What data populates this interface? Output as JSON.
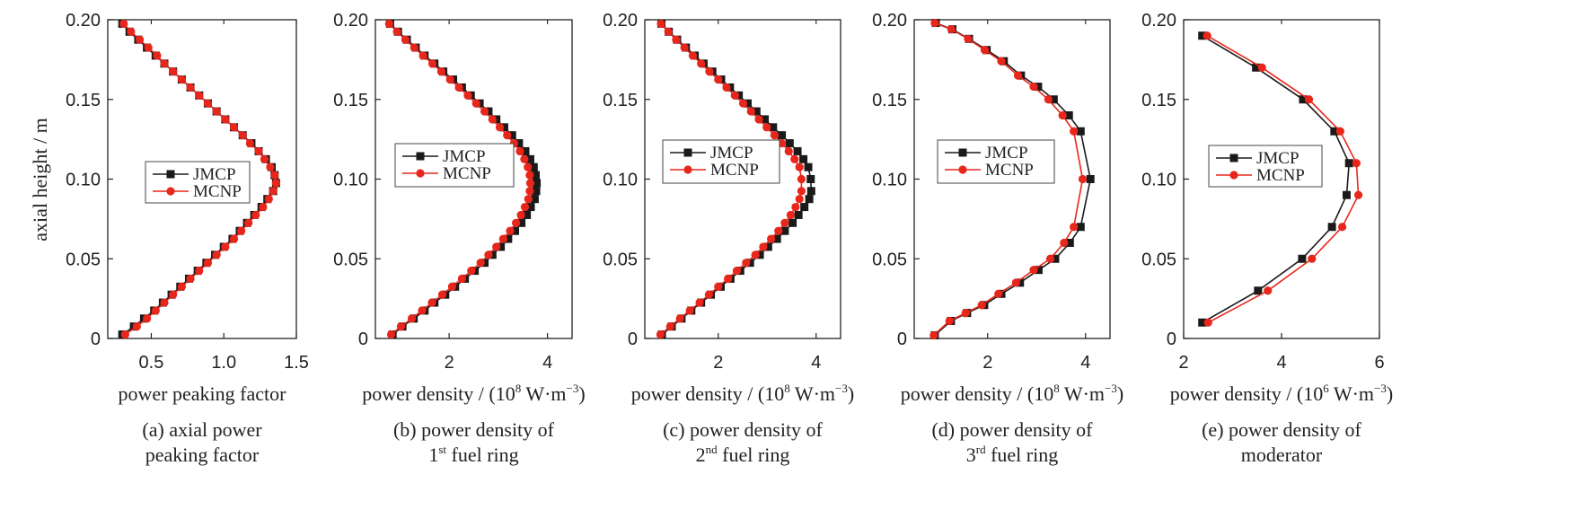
{
  "figure": {
    "y_axis_title": "axial height / m",
    "colors": {
      "JMCP": "#1a1a1a",
      "MCNP": "#e8261c"
    }
  },
  "chart_data": [
    {
      "id": "a",
      "type": "line",
      "xlabel": "power peaking factor",
      "xlabel_unit": null,
      "caption_lines": [
        "(a) axial power",
        "peaking factor"
      ],
      "xlim": [
        0.2,
        1.5
      ],
      "xticks": [
        0.5,
        1.0,
        1.5
      ],
      "xtick_labels": [
        "0.5",
        "1.0",
        "1.5"
      ],
      "ylim": [
        0,
        0.2
      ],
      "yticks": [
        0,
        0.05,
        0.1,
        0.15,
        0.2
      ],
      "ytick_labels": [
        "0",
        "0.05",
        "0.10",
        "0.15",
        "0.20"
      ],
      "legend": {
        "entries": [
          "JMCP",
          "MCNP"
        ],
        "placement": "center-left"
      },
      "series": [
        {
          "name": "JMCP",
          "marker": "square",
          "x": [
            0.3,
            0.38,
            0.45,
            0.52,
            0.58,
            0.64,
            0.7,
            0.76,
            0.82,
            0.88,
            0.94,
            1.0,
            1.06,
            1.11,
            1.16,
            1.21,
            1.26,
            1.3,
            1.34,
            1.36,
            1.35,
            1.33,
            1.29,
            1.24,
            1.19,
            1.13,
            1.07,
            1.01,
            0.95,
            0.89,
            0.83,
            0.77,
            0.71,
            0.65,
            0.59,
            0.53,
            0.47,
            0.41,
            0.35,
            0.3
          ],
          "y": [
            0.0025,
            0.0075,
            0.0125,
            0.0175,
            0.0225,
            0.0275,
            0.0325,
            0.0375,
            0.0425,
            0.0475,
            0.0525,
            0.0575,
            0.0625,
            0.0675,
            0.0725,
            0.0775,
            0.0825,
            0.0875,
            0.0925,
            0.0975,
            0.1025,
            0.1075,
            0.1125,
            0.1175,
            0.1225,
            0.1275,
            0.1325,
            0.1375,
            0.1425,
            0.1475,
            0.1525,
            0.1575,
            0.1625,
            0.1675,
            0.1725,
            0.1775,
            0.1825,
            0.1875,
            0.1925,
            0.1975
          ]
        },
        {
          "name": "MCNP",
          "marker": "circle",
          "x": [
            0.32,
            0.4,
            0.47,
            0.53,
            0.59,
            0.65,
            0.71,
            0.77,
            0.83,
            0.89,
            0.95,
            1.01,
            1.07,
            1.12,
            1.17,
            1.22,
            1.27,
            1.31,
            1.34,
            1.36,
            1.35,
            1.32,
            1.28,
            1.24,
            1.18,
            1.13,
            1.07,
            1.01,
            0.95,
            0.89,
            0.83,
            0.77,
            0.71,
            0.65,
            0.59,
            0.54,
            0.48,
            0.42,
            0.36,
            0.31
          ],
          "y": [
            0.0025,
            0.0075,
            0.0125,
            0.0175,
            0.0225,
            0.0275,
            0.0325,
            0.0375,
            0.0425,
            0.0475,
            0.0525,
            0.0575,
            0.0625,
            0.0675,
            0.0725,
            0.0775,
            0.0825,
            0.0875,
            0.0925,
            0.0975,
            0.1025,
            0.1075,
            0.1125,
            0.1175,
            0.1225,
            0.1275,
            0.1325,
            0.1375,
            0.1425,
            0.1475,
            0.1525,
            0.1575,
            0.1625,
            0.1675,
            0.1725,
            0.1775,
            0.1825,
            0.1875,
            0.1925,
            0.1975
          ]
        }
      ]
    },
    {
      "id": "b",
      "type": "line",
      "xlabel": "power density / (10",
      "xlabel_exp": "8",
      "xlabel_tail": " W·m",
      "xlabel_tail_exp": "−3",
      "xlabel_close": ")",
      "caption_lines": [
        "(b) power density of",
        "1st fuel ring"
      ],
      "caption_sup": {
        "line": 1,
        "base": "1",
        "sup": "st",
        "rest": " fuel ring"
      },
      "xlim": [
        0.5,
        4.5
      ],
      "xticks": [
        2,
        4
      ],
      "xtick_labels": [
        "2",
        "4"
      ],
      "ylim": [
        0,
        0.2
      ],
      "yticks": [
        0,
        0.05,
        0.1,
        0.15,
        0.2
      ],
      "ytick_labels": [
        "0",
        "0.05",
        "0.10",
        "0.15",
        "0.20"
      ],
      "legend": {
        "entries": [
          "JMCP",
          "MCNP"
        ],
        "placement": "center-left"
      },
      "series": [
        {
          "name": "JMCP",
          "marker": "square",
          "x": [
            0.85,
            1.05,
            1.28,
            1.5,
            1.7,
            1.92,
            2.12,
            2.32,
            2.52,
            2.72,
            2.88,
            3.05,
            3.2,
            3.34,
            3.47,
            3.58,
            3.66,
            3.74,
            3.77,
            3.78,
            3.76,
            3.72,
            3.65,
            3.55,
            3.42,
            3.28,
            3.12,
            2.96,
            2.8,
            2.62,
            2.44,
            2.26,
            2.08,
            1.88,
            1.7,
            1.5,
            1.32,
            1.14,
            0.96,
            0.8
          ],
          "y": [
            0.0025,
            0.0075,
            0.0125,
            0.0175,
            0.0225,
            0.0275,
            0.0325,
            0.0375,
            0.0425,
            0.0475,
            0.0525,
            0.0575,
            0.0625,
            0.0675,
            0.0725,
            0.0775,
            0.0825,
            0.0875,
            0.0925,
            0.0975,
            0.1025,
            0.1075,
            0.1125,
            0.1175,
            0.1225,
            0.1275,
            0.1325,
            0.1375,
            0.1425,
            0.1475,
            0.1525,
            0.1575,
            0.1625,
            0.1675,
            0.1725,
            0.1775,
            0.1825,
            0.1875,
            0.1925,
            0.1975
          ]
        },
        {
          "name": "MCNP",
          "marker": "circle",
          "x": [
            0.82,
            1.02,
            1.24,
            1.45,
            1.65,
            1.86,
            2.06,
            2.26,
            2.45,
            2.64,
            2.8,
            2.96,
            3.1,
            3.24,
            3.36,
            3.46,
            3.54,
            3.61,
            3.64,
            3.65,
            3.64,
            3.6,
            3.53,
            3.44,
            3.32,
            3.18,
            3.03,
            2.88,
            2.72,
            2.55,
            2.38,
            2.2,
            2.02,
            1.84,
            1.66,
            1.47,
            1.29,
            1.11,
            0.94,
            0.78
          ],
          "y": [
            0.0025,
            0.0075,
            0.0125,
            0.0175,
            0.0225,
            0.0275,
            0.0325,
            0.0375,
            0.0425,
            0.0475,
            0.0525,
            0.0575,
            0.0625,
            0.0675,
            0.0725,
            0.0775,
            0.0825,
            0.0875,
            0.0925,
            0.0975,
            0.1025,
            0.1075,
            0.1125,
            0.1175,
            0.1225,
            0.1275,
            0.1325,
            0.1375,
            0.1425,
            0.1475,
            0.1525,
            0.1575,
            0.1625,
            0.1675,
            0.1725,
            0.1775,
            0.1825,
            0.1875,
            0.1925,
            0.1975
          ]
        }
      ]
    },
    {
      "id": "c",
      "type": "line",
      "xlabel": "power density / (10",
      "xlabel_exp": "8",
      "xlabel_tail": " W·m",
      "xlabel_tail_exp": "−3",
      "xlabel_close": ")",
      "caption_lines": [
        "(c) power density of",
        "2nd fuel ring"
      ],
      "caption_sup": {
        "line": 1,
        "base": "2",
        "sup": "nd",
        "rest": " fuel ring"
      },
      "xlim": [
        0.5,
        4.5
      ],
      "xticks": [
        2,
        4
      ],
      "xtick_labels": [
        "2",
        "4"
      ],
      "ylim": [
        0,
        0.2
      ],
      "yticks": [
        0,
        0.05,
        0.1,
        0.15,
        0.2
      ],
      "ytick_labels": [
        "0",
        "0.05",
        "0.10",
        "0.15",
        "0.20"
      ],
      "legend": {
        "entries": [
          "JMCP",
          "MCNP"
        ],
        "placement": "center-left"
      },
      "series": [
        {
          "name": "JMCP",
          "marker": "square",
          "x": [
            0.85,
            1.05,
            1.25,
            1.45,
            1.65,
            1.85,
            2.05,
            2.25,
            2.45,
            2.65,
            2.85,
            3.02,
            3.2,
            3.36,
            3.52,
            3.64,
            3.76,
            3.86,
            3.9,
            3.89,
            3.84,
            3.74,
            3.62,
            3.46,
            3.3,
            3.12,
            2.95,
            2.78,
            2.6,
            2.42,
            2.24,
            2.06,
            1.88,
            1.7,
            1.52,
            1.34,
            1.16,
            0.99,
            0.84
          ],
          "y": [
            0.0025,
            0.0075,
            0.0125,
            0.0175,
            0.0225,
            0.0275,
            0.0325,
            0.0375,
            0.0425,
            0.0475,
            0.0525,
            0.0575,
            0.0625,
            0.0675,
            0.0725,
            0.0775,
            0.0825,
            0.0875,
            0.0925,
            0.1,
            0.1075,
            0.1125,
            0.1175,
            0.1225,
            0.1275,
            0.1325,
            0.1375,
            0.1425,
            0.1475,
            0.1525,
            0.1575,
            0.1625,
            0.1675,
            0.1725,
            0.1775,
            0.1825,
            0.1875,
            0.1925,
            0.1975
          ]
        },
        {
          "name": "MCNP",
          "marker": "circle",
          "x": [
            0.82,
            1.02,
            1.22,
            1.42,
            1.62,
            1.81,
            2.0,
            2.2,
            2.38,
            2.57,
            2.76,
            2.92,
            3.08,
            3.23,
            3.36,
            3.48,
            3.58,
            3.66,
            3.7,
            3.7,
            3.66,
            3.56,
            3.44,
            3.3,
            3.15,
            2.99,
            2.83,
            2.67,
            2.51,
            2.34,
            2.17,
            2.0,
            1.82,
            1.65,
            1.48,
            1.31,
            1.14,
            0.98,
            0.83
          ],
          "y": [
            0.0025,
            0.0075,
            0.0125,
            0.0175,
            0.0225,
            0.0275,
            0.0325,
            0.0375,
            0.0425,
            0.0475,
            0.0525,
            0.0575,
            0.0625,
            0.0675,
            0.0725,
            0.0775,
            0.0825,
            0.0875,
            0.0925,
            0.1,
            0.1075,
            0.1125,
            0.1175,
            0.1225,
            0.1275,
            0.1325,
            0.1375,
            0.1425,
            0.1475,
            0.1525,
            0.1575,
            0.1625,
            0.1675,
            0.1725,
            0.1775,
            0.1825,
            0.1875,
            0.1925,
            0.1975
          ]
        }
      ]
    },
    {
      "id": "d",
      "type": "line",
      "xlabel": "power density / (10",
      "xlabel_exp": "8",
      "xlabel_tail": " W·m",
      "xlabel_tail_exp": "−3",
      "xlabel_close": ")",
      "caption_lines": [
        "(d) power density of",
        "3rd fuel ring"
      ],
      "caption_sup": {
        "line": 1,
        "base": "3",
        "sup": "rd",
        "rest": " fuel ring"
      },
      "xlim": [
        0.5,
        4.5
      ],
      "xticks": [
        2,
        4
      ],
      "xtick_labels": [
        "2",
        "4"
      ],
      "ylim": [
        0,
        0.2
      ],
      "yticks": [
        0,
        0.05,
        0.1,
        0.15,
        0.2
      ],
      "ytick_labels": [
        "0",
        "0.05",
        "0.10",
        "0.15",
        "0.20"
      ],
      "legend": {
        "entries": [
          "JMCP",
          "MCNP"
        ],
        "placement": "center-left"
      },
      "series": [
        {
          "name": "JMCP",
          "marker": "square",
          "x": [
            0.92,
            1.25,
            1.58,
            1.93,
            2.28,
            2.66,
            3.04,
            3.38,
            3.68,
            3.9,
            4.1,
            3.9,
            3.66,
            3.35,
            3.03,
            2.68,
            2.33,
            1.98,
            1.62,
            1.28,
            0.94
          ],
          "y": [
            0.002,
            0.011,
            0.016,
            0.021,
            0.028,
            0.035,
            0.043,
            0.05,
            0.06,
            0.07,
            0.1,
            0.13,
            0.14,
            0.15,
            0.158,
            0.165,
            0.174,
            0.181,
            0.188,
            0.194,
            0.198
          ]
        },
        {
          "name": "MCNP",
          "marker": "circle",
          "x": [
            0.9,
            1.22,
            1.55,
            1.88,
            2.22,
            2.58,
            2.94,
            3.28,
            3.56,
            3.76,
            3.94,
            3.76,
            3.53,
            3.24,
            2.94,
            2.62,
            2.28,
            1.94,
            1.6,
            1.26,
            0.92
          ],
          "y": [
            0.002,
            0.011,
            0.016,
            0.021,
            0.028,
            0.035,
            0.043,
            0.05,
            0.06,
            0.07,
            0.1,
            0.13,
            0.14,
            0.15,
            0.158,
            0.165,
            0.174,
            0.181,
            0.188,
            0.194,
            0.198
          ]
        }
      ]
    },
    {
      "id": "e",
      "type": "line",
      "xlabel": "power density / (10",
      "xlabel_exp": "6",
      "xlabel_tail": " W·m",
      "xlabel_tail_exp": "−3",
      "xlabel_close": ")",
      "caption_lines": [
        "(e) power density of",
        "moderator"
      ],
      "xlim": [
        2,
        6
      ],
      "xticks": [
        2,
        4,
        6
      ],
      "xtick_labels": [
        "2",
        "4",
        "6"
      ],
      "ylim": [
        0,
        0.2
      ],
      "yticks": [
        0,
        0.05,
        0.1,
        0.15,
        0.2
      ],
      "ytick_labels": [
        "0",
        "0.05",
        "0.10",
        "0.15",
        "0.20"
      ],
      "legend": {
        "entries": [
          "JMCP",
          "MCNP"
        ],
        "placement": "center-left"
      },
      "series": [
        {
          "name": "JMCP",
          "marker": "square",
          "x": [
            2.38,
            3.52,
            4.42,
            5.03,
            5.33,
            5.38,
            5.08,
            4.44,
            3.48,
            2.38
          ],
          "y": [
            0.01,
            0.03,
            0.05,
            0.07,
            0.09,
            0.11,
            0.13,
            0.15,
            0.17,
            0.19
          ]
        },
        {
          "name": "MCNP",
          "marker": "circle",
          "x": [
            2.5,
            3.72,
            4.62,
            5.24,
            5.57,
            5.53,
            5.2,
            4.56,
            3.6,
            2.48
          ],
          "y": [
            0.01,
            0.03,
            0.05,
            0.07,
            0.09,
            0.11,
            0.13,
            0.15,
            0.17,
            0.19
          ]
        }
      ]
    }
  ]
}
